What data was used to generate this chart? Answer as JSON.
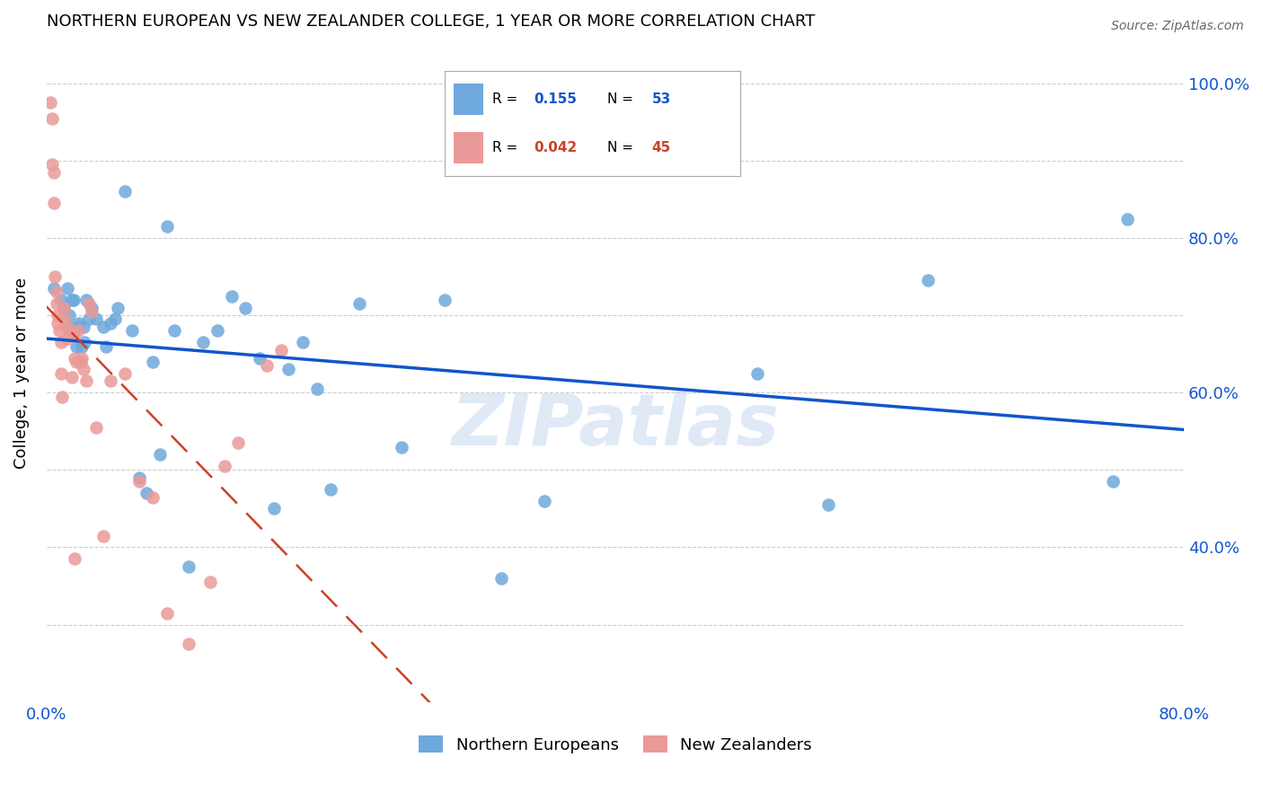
{
  "title": "NORTHERN EUROPEAN VS NEW ZEALANDER COLLEGE, 1 YEAR OR MORE CORRELATION CHART",
  "source": "Source: ZipAtlas.com",
  "ylabel": "College, 1 year or more",
  "xlim": [
    0.0,
    0.8
  ],
  "ylim": [
    0.2,
    1.05
  ],
  "blue_color": "#6fa8dc",
  "pink_color": "#ea9999",
  "line_blue": "#1155cc",
  "line_pink": "#cc4125",
  "watermark": "ZIPatlas",
  "blue_points_x": [
    0.005,
    0.01,
    0.012,
    0.015,
    0.016,
    0.017,
    0.018,
    0.019,
    0.02,
    0.021,
    0.022,
    0.023,
    0.025,
    0.026,
    0.027,
    0.028,
    0.03,
    0.032,
    0.035,
    0.04,
    0.042,
    0.045,
    0.048,
    0.05,
    0.055,
    0.06,
    0.065,
    0.07,
    0.075,
    0.08,
    0.085,
    0.09,
    0.1,
    0.11,
    0.12,
    0.13,
    0.14,
    0.15,
    0.16,
    0.17,
    0.18,
    0.19,
    0.2,
    0.22,
    0.25,
    0.28,
    0.32,
    0.35,
    0.5,
    0.55,
    0.62,
    0.75,
    0.76
  ],
  "blue_points_y": [
    0.735,
    0.72,
    0.71,
    0.735,
    0.7,
    0.685,
    0.72,
    0.72,
    0.68,
    0.66,
    0.685,
    0.69,
    0.66,
    0.685,
    0.665,
    0.72,
    0.695,
    0.71,
    0.695,
    0.685,
    0.66,
    0.69,
    0.695,
    0.71,
    0.86,
    0.68,
    0.49,
    0.47,
    0.64,
    0.52,
    0.815,
    0.68,
    0.375,
    0.665,
    0.68,
    0.725,
    0.71,
    0.645,
    0.45,
    0.63,
    0.665,
    0.605,
    0.475,
    0.715,
    0.53,
    0.72,
    0.36,
    0.46,
    0.625,
    0.455,
    0.745,
    0.485,
    0.825
  ],
  "pink_points_x": [
    0.003,
    0.004,
    0.004,
    0.005,
    0.005,
    0.006,
    0.007,
    0.007,
    0.008,
    0.008,
    0.009,
    0.01,
    0.01,
    0.011,
    0.012,
    0.013,
    0.014,
    0.015,
    0.016,
    0.017,
    0.018,
    0.019,
    0.02,
    0.021,
    0.022,
    0.024,
    0.026,
    0.028,
    0.03,
    0.032,
    0.035,
    0.04,
    0.045,
    0.055,
    0.065,
    0.075,
    0.085,
    0.1,
    0.115,
    0.125,
    0.135,
    0.155,
    0.165,
    0.02,
    0.025
  ],
  "pink_points_y": [
    0.975,
    0.955,
    0.895,
    0.885,
    0.845,
    0.75,
    0.73,
    0.715,
    0.7,
    0.69,
    0.68,
    0.665,
    0.625,
    0.595,
    0.71,
    0.695,
    0.685,
    0.67,
    0.675,
    0.68,
    0.62,
    0.675,
    0.645,
    0.64,
    0.68,
    0.64,
    0.63,
    0.615,
    0.715,
    0.705,
    0.555,
    0.415,
    0.615,
    0.625,
    0.485,
    0.465,
    0.315,
    0.275,
    0.355,
    0.505,
    0.535,
    0.635,
    0.655,
    0.385,
    0.645
  ],
  "grid_color": "#cccccc",
  "tick_color": "#1155cc",
  "legend_r1_val": "0.155",
  "legend_n1_val": "53",
  "legend_r2_val": "0.042",
  "legend_n2_val": "45"
}
